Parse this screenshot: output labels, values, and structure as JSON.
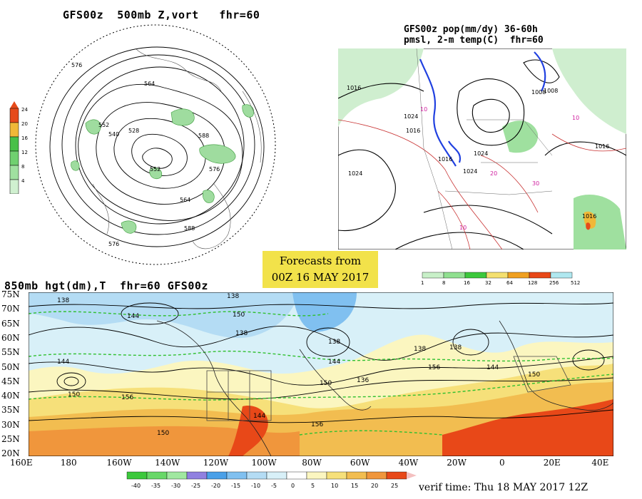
{
  "panels": {
    "polar": {
      "title": "GFS00z  500mb Z,vort   fhr=60",
      "scale_labels": [
        "24",
        "20",
        "16",
        "12",
        "8",
        "4"
      ],
      "scale_colors": [
        "#e64a1a",
        "#f0b838",
        "#48c048",
        "#70d070",
        "#a0e0a0",
        "#d0f0d0"
      ],
      "contour_labels": [
        "576",
        "564",
        "552",
        "540",
        "528",
        "588",
        "576",
        "552",
        "564",
        "576",
        "588"
      ]
    },
    "precip": {
      "title_line1": "GFS00z pop(mm/dy) 36-60h",
      "title_line2": "pmsl, 2-m temp(C)  fhr=60",
      "isobar_labels": [
        "1016",
        "1024",
        "1008",
        "1016",
        "1024",
        "1016",
        "1024",
        "1016",
        "1024",
        "1008",
        "1016"
      ],
      "temp_labels": [
        "10",
        "10",
        "20",
        "30",
        "10"
      ],
      "scale_labels": [
        "1",
        "8",
        "16",
        "32",
        "64",
        "128",
        "256",
        "512"
      ],
      "scale_colors": [
        "#c8f0c8",
        "#90e090",
        "#3cc83c",
        "#f4e070",
        "#f0a020",
        "#e84818",
        "#b0e8f0"
      ]
    },
    "h850": {
      "title": "850mb hgt(dm),T  fhr=60 GFS00z",
      "lat_labels": [
        "75N",
        "70N",
        "65N",
        "60N",
        "55N",
        "50N",
        "45N",
        "40N",
        "35N",
        "30N",
        "25N",
        "20N"
      ],
      "lon_labels": [
        "160E",
        "180",
        "160W",
        "140W",
        "120W",
        "100W",
        "80W",
        "60W",
        "40W",
        "20W",
        "0",
        "20E",
        "40E"
      ],
      "contour_labels": [
        "138",
        "138",
        "144",
        "150",
        "138",
        "144",
        "150",
        "156",
        "150",
        "138",
        "144",
        "156",
        "150",
        "156",
        "144",
        "138",
        "150",
        "144",
        "136",
        "138"
      ],
      "temp_scale_labels": [
        "-40",
        "-35",
        "-30",
        "-25",
        "-20",
        "-15",
        "-10",
        "-5",
        "0",
        "5",
        "10",
        "15",
        "20",
        "25"
      ],
      "temp_scale_colors": [
        "#3cc83c",
        "#68d868",
        "#a0e8a0",
        "#9080e0",
        "#4aa0e8",
        "#80c0f0",
        "#b4dcf4",
        "#d8f0f8",
        "#ffffff",
        "#fbf6c0",
        "#f6e07a",
        "#f2bd50",
        "#f0963c",
        "#e84818"
      ]
    }
  },
  "forecast_box": {
    "line1": "Forecasts from",
    "line2": "00Z 16 MAY 2017"
  },
  "verif_time": "verif time: Thu 18 MAY 2017 12Z"
}
